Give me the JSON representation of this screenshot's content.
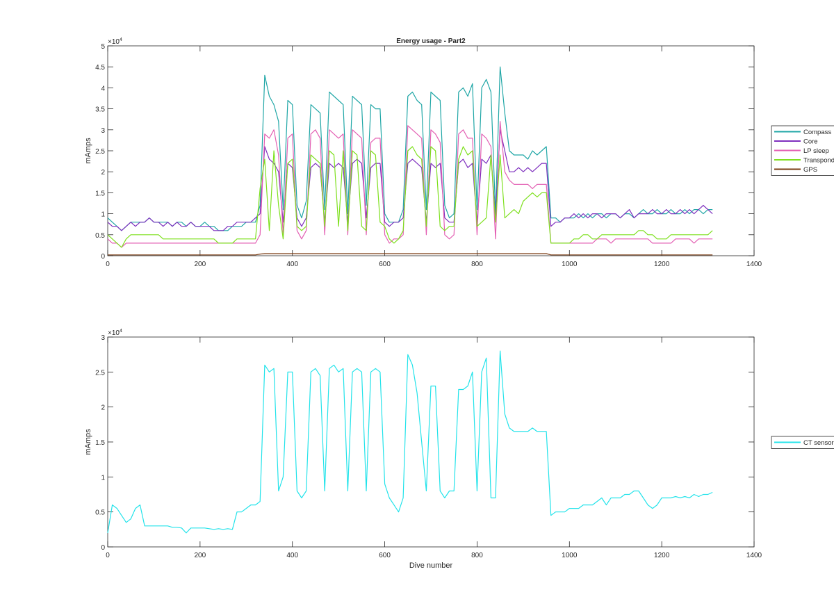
{
  "chart_data": [
    {
      "type": "line",
      "title": "Energy usage - Part2",
      "xlabel": "",
      "ylabel": "mAmps",
      "y_multiplier_label": "×10",
      "y_multiplier_exp": "4",
      "y_scale": 10000,
      "xlim": [
        0,
        1400
      ],
      "ylim": [
        0,
        5
      ],
      "xticks": [
        0,
        200,
        400,
        600,
        800,
        1000,
        1200,
        1400
      ],
      "yticks": [
        0,
        0.5,
        1,
        1.5,
        2,
        2.5,
        3,
        3.5,
        4,
        4.5,
        5
      ],
      "ytick_labels": [
        "0",
        "0.5",
        "1",
        "1.5",
        "2",
        "2.5",
        "3",
        "3.5",
        "4",
        "4.5",
        "5"
      ],
      "legend_position": "outside-right",
      "x_start": 0,
      "x_step": 10,
      "series": [
        {
          "name": "Compass",
          "color": "#1fa6a6",
          "values": [
            0.9,
            0.8,
            0.7,
            0.6,
            0.7,
            0.8,
            0.8,
            0.8,
            0.8,
            0.9,
            0.8,
            0.8,
            0.8,
            0.8,
            0.7,
            0.8,
            0.8,
            0.7,
            0.8,
            0.7,
            0.7,
            0.8,
            0.7,
            0.7,
            0.6,
            0.6,
            0.6,
            0.7,
            0.7,
            0.7,
            0.8,
            0.8,
            0.8,
            1.2,
            4.3,
            3.8,
            3.6,
            3.2,
            1.1,
            3.7,
            3.6,
            1.2,
            0.9,
            1.3,
            3.6,
            3.5,
            3.4,
            1.1,
            3.9,
            3.8,
            3.7,
            3.6,
            1.0,
            3.8,
            3.7,
            3.6,
            1.2,
            3.6,
            3.5,
            3.5,
            1.0,
            0.8,
            0.8,
            0.8,
            1.1,
            3.8,
            3.9,
            3.7,
            3.6,
            1.1,
            3.9,
            3.8,
            3.7,
            1.2,
            0.9,
            1.0,
            3.9,
            4.0,
            3.8,
            4.1,
            1.1,
            4.0,
            4.2,
            3.9,
            1.0,
            4.5,
            3.4,
            2.5,
            2.4,
            2.4,
            2.4,
            2.3,
            2.5,
            2.4,
            2.5,
            2.6,
            0.9,
            0.9,
            0.8,
            0.9,
            0.9,
            0.9,
            1.0,
            0.9,
            1.0,
            0.9,
            1.0,
            1.0,
            0.9,
            1.0,
            1.0,
            0.9,
            1.0,
            1.0,
            0.9,
            1.0,
            1.1,
            1.0,
            1.0,
            1.1,
            1.0,
            1.0,
            1.1,
            1.0,
            1.0,
            1.1,
            1.0,
            1.1,
            1.1,
            1.0,
            1.1,
            1.1
          ]
        },
        {
          "name": "Core",
          "color": "#7e2fbe",
          "values": [
            0.8,
            0.7,
            0.7,
            0.6,
            0.7,
            0.8,
            0.7,
            0.8,
            0.8,
            0.9,
            0.8,
            0.8,
            0.7,
            0.8,
            0.7,
            0.8,
            0.7,
            0.7,
            0.8,
            0.7,
            0.7,
            0.7,
            0.7,
            0.6,
            0.6,
            0.6,
            0.7,
            0.7,
            0.8,
            0.8,
            0.8,
            0.8,
            0.9,
            1.0,
            2.6,
            2.3,
            2.2,
            2.0,
            0.8,
            2.2,
            2.1,
            0.9,
            0.7,
            0.9,
            2.1,
            2.2,
            2.1,
            0.8,
            2.2,
            2.1,
            2.2,
            2.1,
            0.8,
            2.2,
            2.3,
            2.2,
            0.9,
            2.1,
            2.2,
            2.2,
            0.8,
            0.7,
            0.8,
            0.8,
            0.9,
            2.2,
            2.3,
            2.2,
            2.1,
            0.8,
            2.2,
            2.1,
            2.2,
            0.9,
            0.8,
            0.8,
            2.2,
            2.3,
            2.1,
            2.2,
            0.8,
            2.3,
            2.2,
            2.4,
            0.9,
            3.0,
            2.5,
            2.0,
            2.0,
            2.1,
            2.0,
            2.1,
            2.0,
            2.1,
            2.2,
            2.2,
            0.7,
            0.8,
            0.8,
            0.9,
            0.9,
            1.0,
            0.9,
            1.0,
            0.9,
            1.0,
            1.0,
            0.9,
            1.0,
            1.0,
            1.0,
            0.9,
            1.0,
            1.1,
            0.9,
            1.0,
            1.0,
            1.0,
            1.1,
            1.0,
            1.0,
            1.1,
            1.0,
            1.0,
            1.1,
            1.0,
            1.1,
            1.0,
            1.1,
            1.2,
            1.1,
            1.0
          ]
        },
        {
          "name": "LP sleep",
          "color": "#e35fb3",
          "values": [
            0.4,
            0.3,
            0.3,
            0.2,
            0.3,
            0.3,
            0.3,
            0.3,
            0.3,
            0.3,
            0.3,
            0.3,
            0.3,
            0.3,
            0.3,
            0.3,
            0.3,
            0.3,
            0.3,
            0.3,
            0.3,
            0.3,
            0.3,
            0.3,
            0.3,
            0.3,
            0.3,
            0.3,
            0.3,
            0.3,
            0.3,
            0.3,
            0.3,
            0.5,
            2.9,
            2.8,
            3.0,
            2.4,
            0.5,
            2.8,
            2.9,
            0.6,
            0.4,
            0.6,
            2.9,
            3.0,
            2.8,
            0.5,
            3.0,
            2.9,
            2.8,
            2.9,
            0.5,
            3.0,
            2.9,
            2.8,
            0.5,
            2.7,
            2.8,
            2.8,
            0.5,
            0.3,
            0.4,
            0.4,
            0.5,
            3.1,
            3.0,
            2.9,
            2.8,
            0.5,
            3.0,
            2.9,
            2.7,
            0.5,
            0.4,
            0.5,
            2.9,
            3.0,
            2.8,
            2.8,
            0.5,
            2.9,
            2.8,
            2.6,
            0.4,
            3.2,
            2.0,
            1.8,
            1.7,
            1.7,
            1.7,
            1.7,
            1.6,
            1.7,
            1.7,
            1.7,
            0.3,
            0.3,
            0.3,
            0.3,
            0.3,
            0.3,
            0.3,
            0.3,
            0.3,
            0.3,
            0.4,
            0.4,
            0.4,
            0.3,
            0.4,
            0.4,
            0.4,
            0.4,
            0.4,
            0.4,
            0.4,
            0.4,
            0.3,
            0.3,
            0.3,
            0.3,
            0.3,
            0.4,
            0.4,
            0.4,
            0.4,
            0.3,
            0.4,
            0.4,
            0.4,
            0.4
          ]
        },
        {
          "name": "Transpond",
          "color": "#7ee01e",
          "values": [
            0.5,
            0.4,
            0.3,
            0.2,
            0.4,
            0.5,
            0.5,
            0.5,
            0.5,
            0.5,
            0.5,
            0.5,
            0.4,
            0.4,
            0.4,
            0.4,
            0.4,
            0.4,
            0.4,
            0.4,
            0.4,
            0.4,
            0.4,
            0.4,
            0.3,
            0.3,
            0.3,
            0.3,
            0.4,
            0.4,
            0.4,
            0.4,
            0.4,
            1.6,
            2.3,
            0.6,
            2.5,
            1.2,
            0.4,
            2.2,
            2.3,
            0.7,
            0.6,
            0.7,
            2.4,
            2.3,
            2.2,
            0.7,
            2.5,
            2.4,
            0.7,
            2.5,
            0.6,
            2.5,
            2.4,
            0.7,
            0.6,
            2.5,
            2.4,
            0.8,
            0.7,
            0.4,
            0.3,
            0.4,
            0.6,
            2.5,
            2.6,
            2.4,
            2.3,
            0.7,
            2.6,
            2.5,
            0.7,
            0.6,
            0.7,
            0.7,
            2.3,
            2.6,
            2.4,
            2.5,
            0.7,
            0.8,
            0.9,
            2.4,
            0.8,
            2.4,
            0.9,
            1.0,
            1.1,
            1.0,
            1.3,
            1.4,
            1.5,
            1.4,
            1.5,
            1.5,
            0.3,
            0.3,
            0.3,
            0.3,
            0.3,
            0.4,
            0.4,
            0.5,
            0.5,
            0.4,
            0.4,
            0.5,
            0.5,
            0.5,
            0.5,
            0.5,
            0.5,
            0.5,
            0.5,
            0.6,
            0.6,
            0.5,
            0.5,
            0.4,
            0.4,
            0.4,
            0.5,
            0.5,
            0.5,
            0.5,
            0.5,
            0.5,
            0.5,
            0.5,
            0.5,
            0.6
          ]
        },
        {
          "name": "GPS",
          "color": "#7a3b12",
          "values": [
            0.02,
            0.02,
            0.02,
            0.02,
            0.02,
            0.02,
            0.02,
            0.02,
            0.02,
            0.02,
            0.02,
            0.02,
            0.02,
            0.02,
            0.02,
            0.02,
            0.02,
            0.02,
            0.02,
            0.02,
            0.02,
            0.02,
            0.02,
            0.02,
            0.02,
            0.02,
            0.02,
            0.02,
            0.02,
            0.02,
            0.02,
            0.02,
            0.02,
            0.04,
            0.05,
            0.05,
            0.05,
            0.05,
            0.05,
            0.05,
            0.05,
            0.05,
            0.05,
            0.05,
            0.05,
            0.05,
            0.05,
            0.05,
            0.05,
            0.05,
            0.05,
            0.05,
            0.05,
            0.05,
            0.05,
            0.05,
            0.05,
            0.05,
            0.05,
            0.05,
            0.05,
            0.05,
            0.05,
            0.05,
            0.05,
            0.05,
            0.05,
            0.05,
            0.05,
            0.05,
            0.05,
            0.05,
            0.05,
            0.05,
            0.05,
            0.05,
            0.05,
            0.05,
            0.05,
            0.05,
            0.05,
            0.05,
            0.05,
            0.05,
            0.05,
            0.05,
            0.05,
            0.05,
            0.05,
            0.05,
            0.05,
            0.05,
            0.05,
            0.05,
            0.05,
            0.05,
            0.02,
            0.02,
            0.02,
            0.02,
            0.02,
            0.02,
            0.02,
            0.02,
            0.02,
            0.02,
            0.02,
            0.02,
            0.02,
            0.02,
            0.02,
            0.02,
            0.02,
            0.02,
            0.02,
            0.02,
            0.02,
            0.02,
            0.02,
            0.02,
            0.02,
            0.02,
            0.02,
            0.02,
            0.02,
            0.02,
            0.02,
            0.02,
            0.02,
            0.02,
            0.02,
            0.02
          ]
        }
      ]
    },
    {
      "type": "line",
      "title": "",
      "xlabel": "Dive number",
      "ylabel": "mAmps",
      "y_multiplier_label": "×10",
      "y_multiplier_exp": "4",
      "y_scale": 10000,
      "xlim": [
        0,
        1400
      ],
      "ylim": [
        0,
        3
      ],
      "xticks": [
        0,
        200,
        400,
        600,
        800,
        1000,
        1200,
        1400
      ],
      "yticks": [
        0,
        0.5,
        1,
        1.5,
        2,
        2.5,
        3
      ],
      "ytick_labels": [
        "0",
        "0.5",
        "1",
        "1.5",
        "2",
        "2.5",
        "3"
      ],
      "legend_position": "outside-right",
      "x_start": 0,
      "x_step": 10,
      "series": [
        {
          "name": "CT sensor",
          "color": "#22e3ea",
          "values": [
            0.2,
            0.6,
            0.55,
            0.45,
            0.35,
            0.4,
            0.55,
            0.6,
            0.3,
            0.3,
            0.3,
            0.3,
            0.3,
            0.3,
            0.28,
            0.28,
            0.27,
            0.2,
            0.27,
            0.27,
            0.27,
            0.27,
            0.26,
            0.25,
            0.26,
            0.25,
            0.26,
            0.25,
            0.5,
            0.5,
            0.55,
            0.6,
            0.6,
            0.65,
            2.6,
            2.5,
            2.55,
            0.8,
            1.0,
            2.5,
            2.5,
            0.8,
            0.7,
            0.8,
            2.5,
            2.55,
            2.45,
            0.8,
            2.55,
            2.6,
            2.5,
            2.55,
            0.8,
            2.5,
            2.55,
            2.5,
            0.8,
            2.5,
            2.55,
            2.5,
            0.9,
            0.7,
            0.6,
            0.5,
            0.7,
            2.75,
            2.6,
            2.2,
            1.5,
            0.8,
            2.3,
            2.3,
            0.8,
            0.7,
            0.8,
            0.8,
            2.25,
            2.25,
            2.3,
            2.5,
            0.8,
            2.5,
            2.7,
            0.7,
            0.7,
            2.8,
            1.9,
            1.7,
            1.65,
            1.65,
            1.65,
            1.65,
            1.7,
            1.65,
            1.65,
            1.65,
            0.45,
            0.5,
            0.5,
            0.5,
            0.55,
            0.55,
            0.55,
            0.6,
            0.6,
            0.6,
            0.65,
            0.7,
            0.6,
            0.7,
            0.7,
            0.7,
            0.75,
            0.75,
            0.8,
            0.8,
            0.7,
            0.6,
            0.55,
            0.6,
            0.7,
            0.7,
            0.7,
            0.72,
            0.7,
            0.72,
            0.7,
            0.75,
            0.72,
            0.75,
            0.75,
            0.78
          ]
        }
      ]
    }
  ]
}
